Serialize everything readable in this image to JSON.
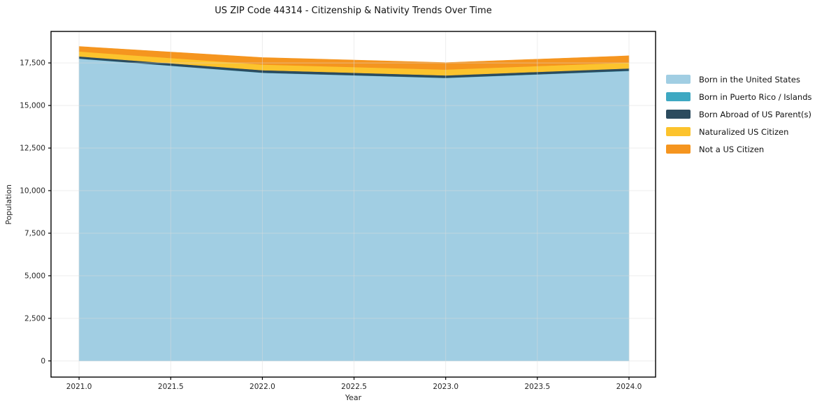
{
  "figure": {
    "background": "#ffffff",
    "frame_color": "#000000",
    "tick_label_color": "#262626"
  },
  "chart_data": {
    "type": "area",
    "stacked": true,
    "title": "US ZIP Code 44314 - Citizenship & Nativity Trends Over Time",
    "xlabel": "Year",
    "ylabel": "Population",
    "x": [
      2021,
      2022,
      2023,
      2024
    ],
    "series": [
      {
        "name": "Born in the United States",
        "color": "#a1cee3",
        "values": [
          17750,
          16920,
          16620,
          17030
        ]
      },
      {
        "name": "Born in Puerto Rico / Islands",
        "color": "#3ea8c2",
        "values": [
          10,
          10,
          10,
          15
        ]
      },
      {
        "name": "Born Abroad of US Parent(s)",
        "color": "#2c4b5e",
        "values": [
          125,
          145,
          140,
          135
        ]
      },
      {
        "name": "Naturalized US Citizen",
        "color": "#fcc32d",
        "values": [
          290,
          330,
          340,
          340
        ]
      },
      {
        "name": "Not a US Citizen",
        "color": "#f5951f",
        "values": [
          290,
          410,
          410,
          400
        ]
      }
    ],
    "totals": [
      18465,
      17815,
      17520,
      17920
    ],
    "xticks": [
      2021.0,
      2021.5,
      2022.0,
      2022.5,
      2023.0,
      2023.5,
      2024.0
    ],
    "xtick_labels": [
      "2021.0",
      "2021.5",
      "2022.0",
      "2022.5",
      "2023.0",
      "2023.5",
      "2024.0"
    ],
    "yticks": [
      0,
      2500,
      5000,
      7500,
      10000,
      12500,
      15000,
      17500
    ],
    "ytick_labels": [
      "0",
      "2,500",
      "5,000",
      "7,500",
      "10,000",
      "12,500",
      "15,000",
      "17,500"
    ],
    "xlim": [
      2020.847,
      2024.145
    ],
    "ylim": [
      -950,
      19350
    ],
    "grid": true,
    "grid_color": "#dcdcdc",
    "legend_position": "right"
  }
}
